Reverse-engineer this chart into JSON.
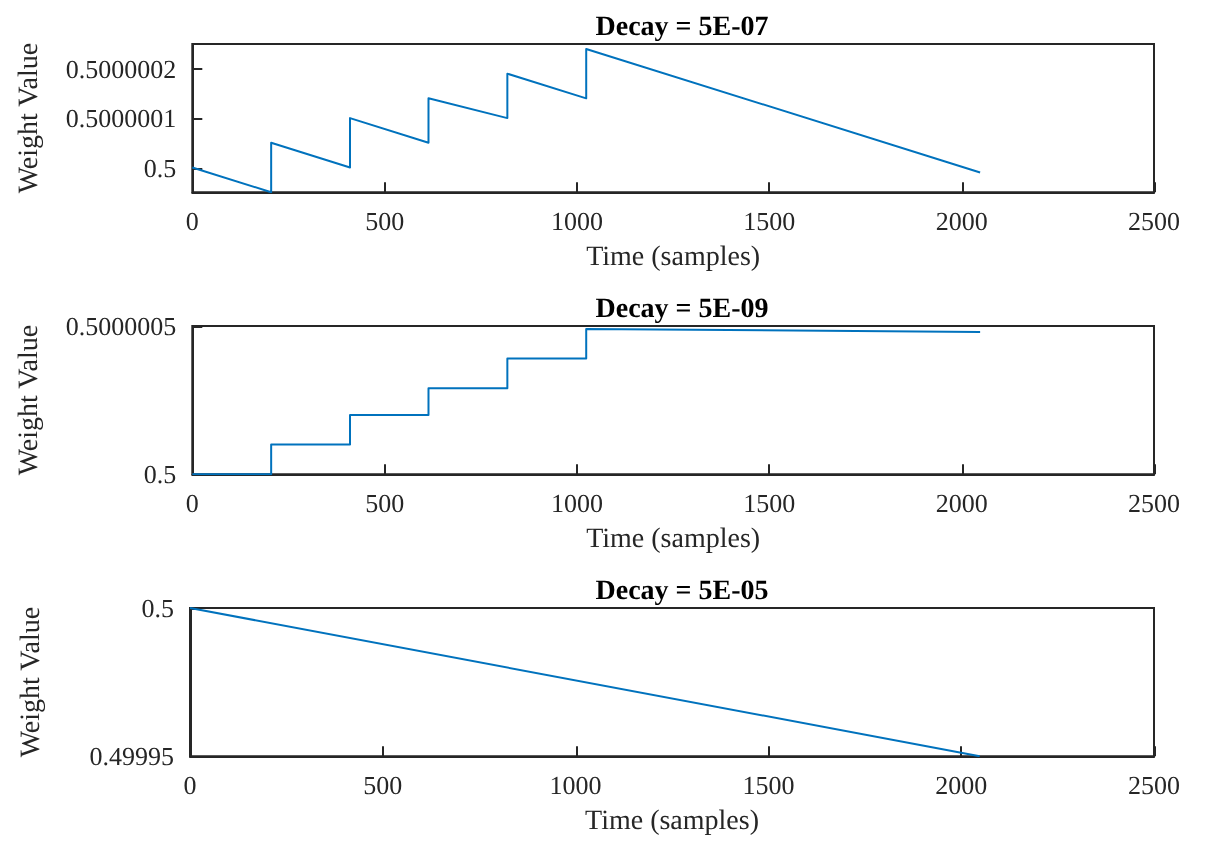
{
  "chart_data": [
    {
      "type": "line",
      "title": "Decay = 5E-07",
      "xlabel": "Time (samples)",
      "ylabel": "Weight Value",
      "marker": "none",
      "xlim": [
        0,
        2500
      ],
      "xticks": [
        0,
        500,
        1000,
        1500,
        2000,
        2500
      ],
      "ylim": [
        0.49999995,
        0.50000025
      ],
      "yticks": [
        0.5,
        0.5000001,
        0.5000002
      ],
      "x": [
        0,
        205,
        205,
        410,
        410,
        614,
        614,
        819,
        819,
        1024,
        1024,
        2048
      ],
      "series": [
        {
          "color": "#0072bd",
          "values": [
            0.5,
            0.49999995,
            0.50000005,
            0.5,
            0.5000001,
            0.50000005,
            0.50000014,
            0.5000001,
            0.50000019,
            0.50000014,
            0.50000024,
            0.49999999
          ]
        }
      ]
    },
    {
      "type": "line",
      "title": "Decay = 5E-09",
      "xlabel": "Time (samples)",
      "ylabel": "Weight Value",
      "marker": "none",
      "xlim": [
        0,
        2500
      ],
      "xticks": [
        0,
        500,
        1000,
        1500,
        2000,
        2500
      ],
      "ylim": [
        0.5,
        0.5000005
      ],
      "yticks": [
        0.5,
        0.5000005
      ],
      "x": [
        0,
        205,
        205,
        410,
        410,
        614,
        614,
        819,
        819,
        1024,
        1024,
        2048
      ],
      "series": [
        {
          "color": "#0072bd",
          "values": [
            0.5,
            0.5,
            0.5000001,
            0.5000001,
            0.5000002,
            0.5000002,
            0.50000029,
            0.50000029,
            0.50000039,
            0.50000039,
            0.50000049,
            0.50000048
          ]
        }
      ]
    },
    {
      "type": "line",
      "title": "Decay = 5E-05",
      "xlabel": "Time (samples)",
      "ylabel": "Weight Value",
      "marker": "none",
      "xlim": [
        0,
        2500
      ],
      "xticks": [
        0,
        500,
        1000,
        1500,
        2000,
        2500
      ],
      "ylim": [
        0.49995,
        0.5
      ],
      "yticks": [
        0.49995,
        0.5
      ],
      "x": [
        0,
        2048
      ],
      "series": [
        {
          "color": "#0072bd",
          "values": [
            0.5,
            0.49995
          ]
        }
      ]
    }
  ]
}
